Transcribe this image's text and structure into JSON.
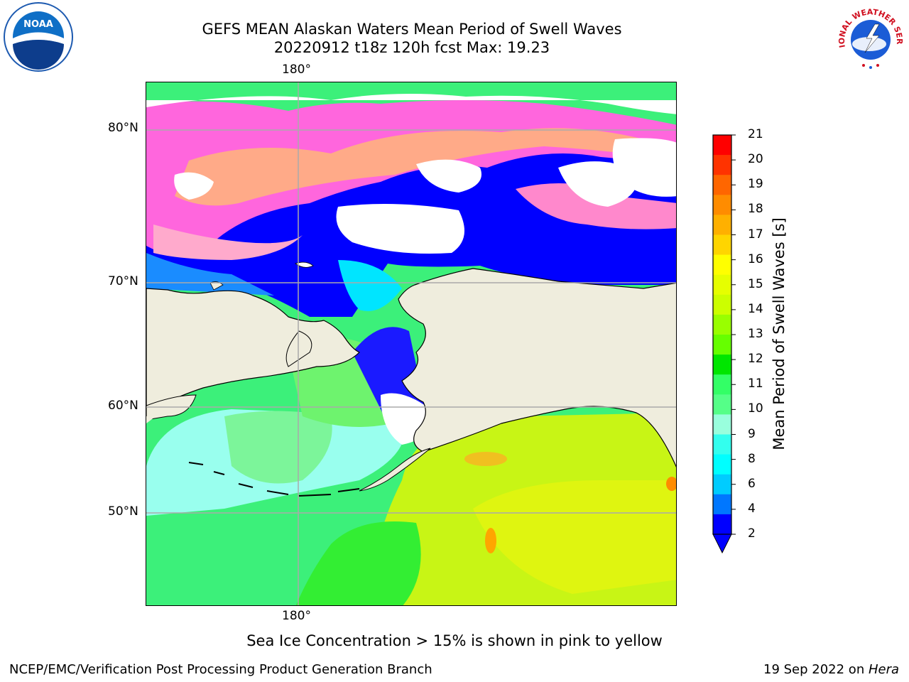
{
  "title": {
    "line1": "GEFS MEAN Alaskan Waters Mean Period of Swell Waves",
    "line2": "20220912 t18z 120h fcst   Max: 19.23"
  },
  "logos": {
    "left": {
      "icon": "noaa-logo",
      "text": "NOAA"
    },
    "right": {
      "icon": "nws-logo",
      "text": "NATIONAL WEATHER SERVICE"
    }
  },
  "map": {
    "lon_labels": {
      "top": "180°",
      "bottom": "180°"
    },
    "lat_labels": [
      "80°N",
      "70°N",
      "60°N",
      "50°N"
    ]
  },
  "colorbar": {
    "title": "Mean Period of Swell Waves [s]",
    "ticks": [
      "21",
      "20",
      "19",
      "18",
      "17",
      "16",
      "15",
      "14",
      "13",
      "12",
      "11",
      "10",
      "9",
      "8",
      "6",
      "4",
      "2"
    ],
    "colors": [
      "#ff0000",
      "#ff3300",
      "#ff6600",
      "#ff8c00",
      "#ffb000",
      "#ffd500",
      "#ffff00",
      "#e6ff00",
      "#ccff00",
      "#99ff00",
      "#66ff00",
      "#00e600",
      "#33ff66",
      "#55ff88",
      "#99ffdd",
      "#33ffee",
      "#00ffff",
      "#00ccff",
      "#0077ff",
      "#0000ff"
    ]
  },
  "footer": {
    "note": "Sea Ice Concentration > 15% is shown in pink to yellow",
    "left": "NCEP/EMC/Verification Post Processing Product Generation Branch",
    "right_date": "19 Sep 2022 on ",
    "right_machine": "Hera"
  }
}
